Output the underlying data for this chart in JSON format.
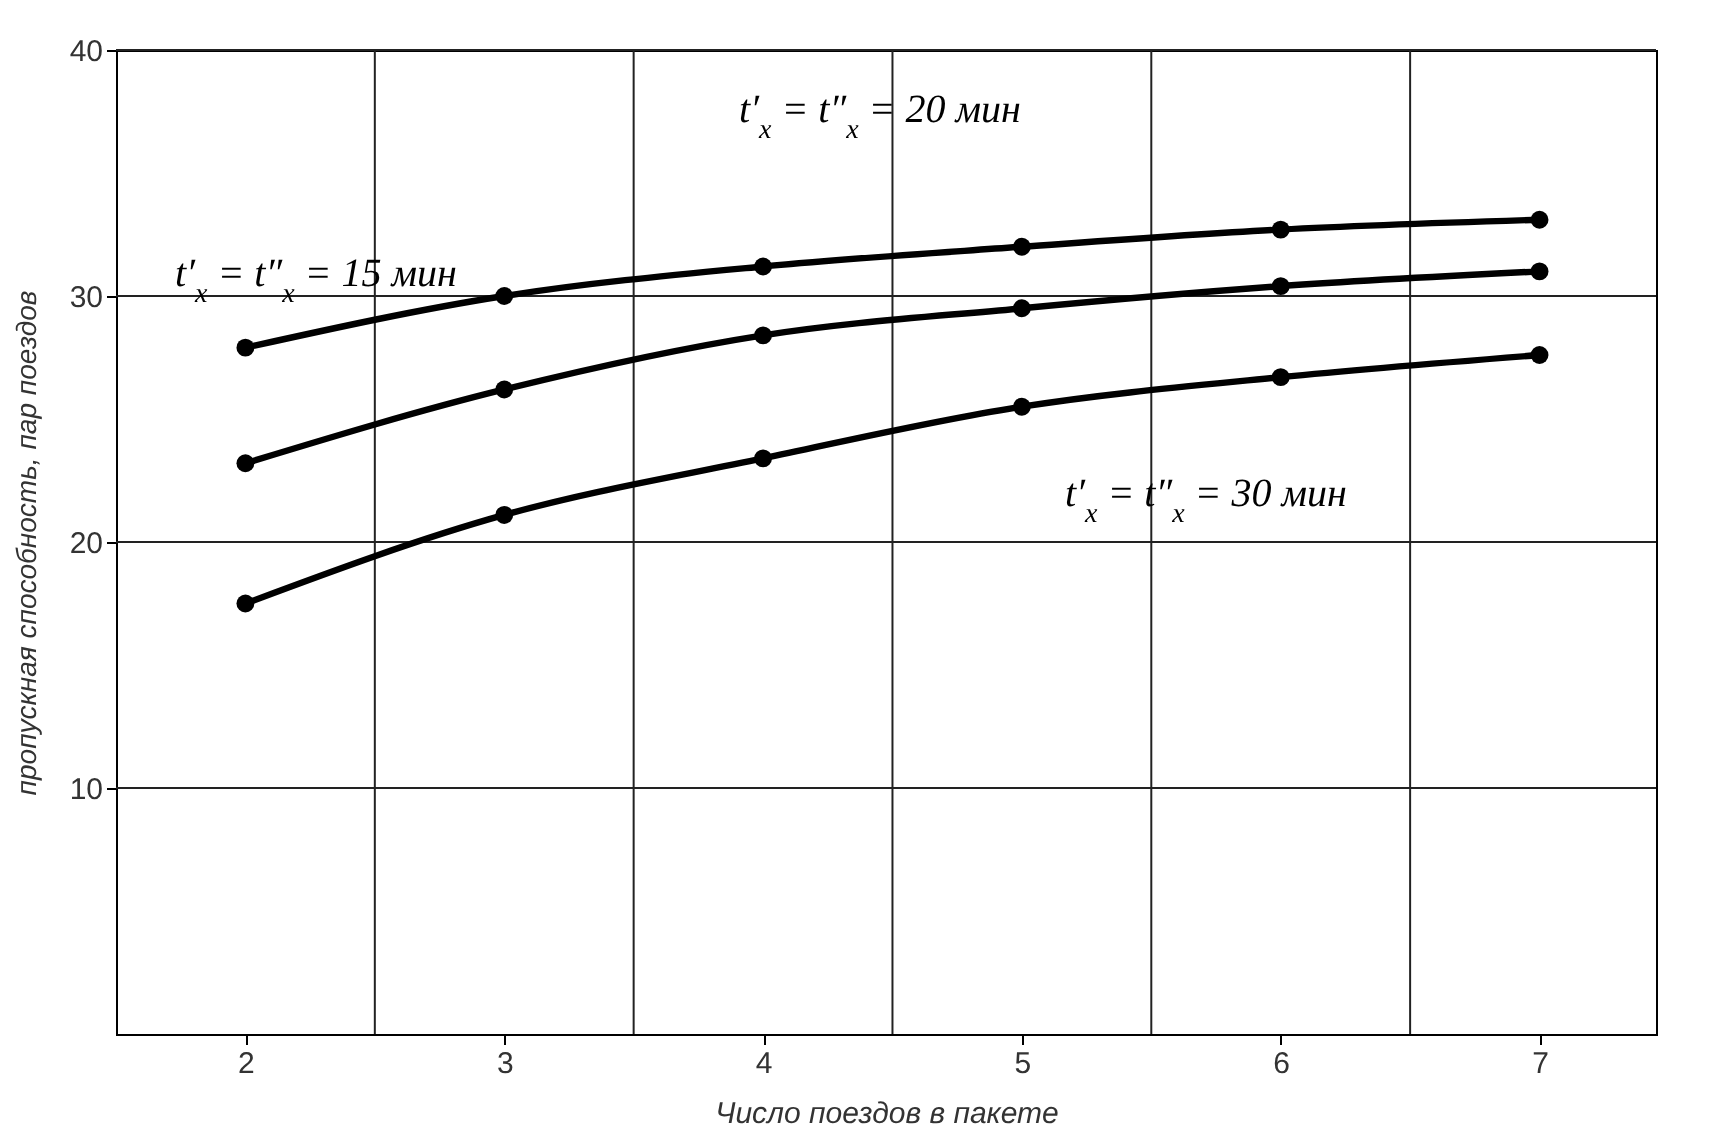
{
  "chart_data": {
    "type": "line",
    "xlabel": "Число поездов в пакете",
    "ylabel": "пропускная способность, пар поездов",
    "x": [
      2,
      3,
      4,
      5,
      6,
      7
    ],
    "series": [
      {
        "color": "#000000",
        "values": [
          27.9,
          30.0,
          31.2,
          32.0,
          32.7,
          33.1
        ]
      },
      {
        "color": "#000000",
        "values": [
          23.2,
          26.2,
          28.4,
          29.5,
          30.4,
          31.0
        ]
      },
      {
        "color": "#000000",
        "values": [
          17.5,
          21.1,
          23.4,
          25.5,
          26.7,
          27.6
        ]
      }
    ],
    "annotations": [
      "t′$_{x}$ = t″$_{x}$ = 15 мин",
      "t′$_{x}$ = t″$_{x}$ = 20 мин",
      "t′$_{x}$ = t″$_{x}$ = 30 мин"
    ],
    "xlim": [
      1.5,
      7.45
    ],
    "xticks": [
      2,
      3,
      4,
      5,
      6,
      7
    ],
    "ylim": [
      0,
      40
    ],
    "yticks": [
      10,
      20,
      30,
      40
    ],
    "grid": true,
    "marker": "circle",
    "line_style": "solid",
    "legend": false
  }
}
